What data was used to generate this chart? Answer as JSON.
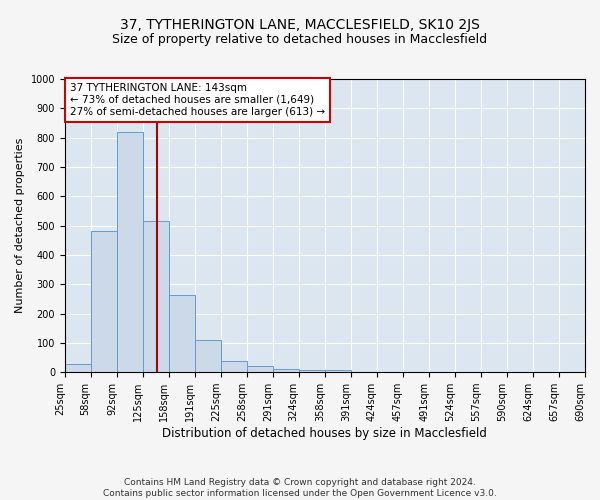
{
  "title": "37, TYTHERINGTON LANE, MACCLESFIELD, SK10 2JS",
  "subtitle": "Size of property relative to detached houses in Macclesfield",
  "xlabel": "Distribution of detached houses by size in Macclesfield",
  "ylabel": "Number of detached properties",
  "property_line": 143,
  "annotation_line1": "37 TYTHERINGTON LANE: 143sqm",
  "annotation_line2": "← 73% of detached houses are smaller (1,649)",
  "annotation_line3": "27% of semi-detached houses are larger (613) →",
  "footer_line1": "Contains HM Land Registry data © Crown copyright and database right 2024.",
  "footer_line2": "Contains public sector information licensed under the Open Government Licence v3.0.",
  "bar_color": "#ccd9e8",
  "bar_edge_color": "#6699cc",
  "bin_edges": [
    25,
    58,
    92,
    125,
    158,
    191,
    225,
    258,
    291,
    324,
    358,
    391,
    424,
    457,
    491,
    524,
    557,
    590,
    624,
    657,
    690
  ],
  "counts": [
    28,
    480,
    820,
    515,
    265,
    110,
    38,
    20,
    10,
    8,
    6,
    0,
    0,
    0,
    0,
    0,
    0,
    0,
    0,
    0
  ],
  "ylim": [
    0,
    1000
  ],
  "yticks": [
    0,
    100,
    200,
    300,
    400,
    500,
    600,
    700,
    800,
    900,
    1000
  ],
  "annotation_box_facecolor": "#ffffff",
  "annotation_box_edgecolor": "#cc0000",
  "vline_color": "#aa0000",
  "fig_facecolor": "#f5f5f5",
  "plot_facecolor": "#dce6f0",
  "grid_color": "#ffffff",
  "title_fontsize": 10,
  "subtitle_fontsize": 9,
  "annotation_fontsize": 7.5,
  "tick_fontsize": 7,
  "xlabel_fontsize": 8.5,
  "ylabel_fontsize": 8
}
